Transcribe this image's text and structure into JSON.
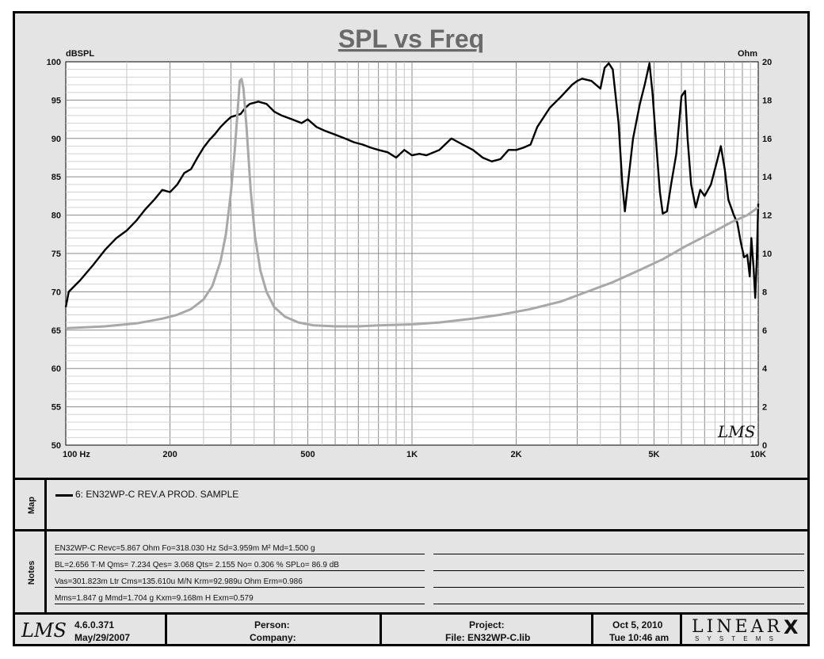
{
  "chart_data": {
    "type": "line",
    "title": "SPL vs Freq",
    "left_axis_label": "dBSPL",
    "right_axis_label": "Ohm",
    "x_scale": "log",
    "xlim": [
      100,
      10000
    ],
    "ylim_left": [
      50,
      100
    ],
    "ylim_right": [
      0,
      20
    ],
    "x_tick_labels": [
      {
        "value": 100,
        "label": "100  Hz"
      },
      {
        "value": 200,
        "label": "200"
      },
      {
        "value": 500,
        "label": "500"
      },
      {
        "value": 1000,
        "label": "1K"
      },
      {
        "value": 2000,
        "label": "2K"
      },
      {
        "value": 5000,
        "label": "5K"
      },
      {
        "value": 10000,
        "label": "10K"
      }
    ],
    "y_left_ticks": [
      50,
      55,
      60,
      65,
      70,
      75,
      80,
      85,
      90,
      95,
      100
    ],
    "y_right_ticks": [
      0,
      2,
      4,
      6,
      8,
      10,
      12,
      14,
      16,
      18,
      20
    ],
    "grid": true,
    "series": [
      {
        "name": "6: EN32WP-C REV.A PROD. SAMPLE",
        "axis": "left",
        "color": "#000000",
        "points": [
          [
            100,
            68.0
          ],
          [
            102,
            70.0
          ],
          [
            110,
            71.5
          ],
          [
            120,
            73.5
          ],
          [
            130,
            75.5
          ],
          [
            140,
            77.0
          ],
          [
            150,
            78.0
          ],
          [
            160,
            79.3
          ],
          [
            170,
            80.8
          ],
          [
            180,
            82.0
          ],
          [
            190,
            83.3
          ],
          [
            200,
            83.0
          ],
          [
            210,
            84.0
          ],
          [
            220,
            85.5
          ],
          [
            230,
            86.0
          ],
          [
            240,
            87.5
          ],
          [
            250,
            88.8
          ],
          [
            260,
            89.8
          ],
          [
            270,
            90.6
          ],
          [
            280,
            91.5
          ],
          [
            290,
            92.2
          ],
          [
            300,
            92.8
          ],
          [
            310,
            93.0
          ],
          [
            320,
            93.2
          ],
          [
            330,
            94.0
          ],
          [
            340,
            94.5
          ],
          [
            360,
            94.8
          ],
          [
            380,
            94.5
          ],
          [
            400,
            93.5
          ],
          [
            420,
            93.0
          ],
          [
            450,
            92.5
          ],
          [
            480,
            92.0
          ],
          [
            500,
            92.5
          ],
          [
            530,
            91.5
          ],
          [
            560,
            91.0
          ],
          [
            600,
            90.5
          ],
          [
            640,
            90.0
          ],
          [
            680,
            89.5
          ],
          [
            720,
            89.2
          ],
          [
            760,
            88.8
          ],
          [
            800,
            88.5
          ],
          [
            850,
            88.2
          ],
          [
            900,
            87.5
          ],
          [
            950,
            88.5
          ],
          [
            1000,
            87.8
          ],
          [
            1050,
            88.0
          ],
          [
            1100,
            87.8
          ],
          [
            1200,
            88.5
          ],
          [
            1300,
            90.0
          ],
          [
            1400,
            89.2
          ],
          [
            1500,
            88.5
          ],
          [
            1600,
            87.5
          ],
          [
            1700,
            87.0
          ],
          [
            1800,
            87.3
          ],
          [
            1900,
            88.5
          ],
          [
            2000,
            88.5
          ],
          [
            2100,
            88.8
          ],
          [
            2200,
            89.2
          ],
          [
            2300,
            91.5
          ],
          [
            2500,
            94.0
          ],
          [
            2700,
            95.5
          ],
          [
            2900,
            97.0
          ],
          [
            3000,
            97.5
          ],
          [
            3100,
            97.8
          ],
          [
            3300,
            97.5
          ],
          [
            3500,
            96.5
          ],
          [
            3600,
            99.2
          ],
          [
            3700,
            99.8
          ],
          [
            3800,
            99.0
          ],
          [
            3950,
            92.0
          ],
          [
            4050,
            84.0
          ],
          [
            4120,
            80.5
          ],
          [
            4200,
            84.0
          ],
          [
            4350,
            90.0
          ],
          [
            4550,
            94.5
          ],
          [
            4700,
            97.0
          ],
          [
            4850,
            99.8
          ],
          [
            4950,
            96.0
          ],
          [
            5100,
            88.0
          ],
          [
            5200,
            83.0
          ],
          [
            5300,
            80.2
          ],
          [
            5450,
            80.5
          ],
          [
            5600,
            84.0
          ],
          [
            5800,
            88.0
          ],
          [
            6000,
            95.5
          ],
          [
            6150,
            96.2
          ],
          [
            6250,
            90.0
          ],
          [
            6400,
            84.0
          ],
          [
            6600,
            81.0
          ],
          [
            6800,
            83.3
          ],
          [
            7000,
            82.5
          ],
          [
            7300,
            84.0
          ],
          [
            7600,
            87.0
          ],
          [
            7800,
            89.0
          ],
          [
            8000,
            86.0
          ],
          [
            8200,
            82.0
          ],
          [
            8500,
            80.0
          ],
          [
            8700,
            79.0
          ],
          [
            8900,
            76.5
          ],
          [
            9100,
            74.5
          ],
          [
            9300,
            74.8
          ],
          [
            9450,
            72.0
          ],
          [
            9550,
            77.0
          ],
          [
            9700,
            73.0
          ],
          [
            9800,
            69.2
          ],
          [
            9900,
            74.0
          ],
          [
            10000,
            81.5
          ]
        ]
      },
      {
        "name": "Impedance",
        "axis": "right",
        "color": "#a8a8a8",
        "points": [
          [
            100,
            6.1
          ],
          [
            130,
            6.2
          ],
          [
            160,
            6.35
          ],
          [
            190,
            6.6
          ],
          [
            210,
            6.8
          ],
          [
            230,
            7.1
          ],
          [
            250,
            7.6
          ],
          [
            265,
            8.3
          ],
          [
            280,
            9.6
          ],
          [
            290,
            11.0
          ],
          [
            300,
            13.2
          ],
          [
            308,
            15.5
          ],
          [
            314,
            17.6
          ],
          [
            318,
            19.0
          ],
          [
            322,
            19.1
          ],
          [
            326,
            18.6
          ],
          [
            333,
            16.5
          ],
          [
            342,
            13.3
          ],
          [
            352,
            10.9
          ],
          [
            365,
            9.1
          ],
          [
            380,
            8.0
          ],
          [
            400,
            7.2
          ],
          [
            430,
            6.7
          ],
          [
            470,
            6.4
          ],
          [
            520,
            6.25
          ],
          [
            600,
            6.2
          ],
          [
            700,
            6.2
          ],
          [
            800,
            6.25
          ],
          [
            1000,
            6.3
          ],
          [
            1200,
            6.4
          ],
          [
            1500,
            6.6
          ],
          [
            1800,
            6.8
          ],
          [
            2200,
            7.1
          ],
          [
            2700,
            7.5
          ],
          [
            3200,
            8.0
          ],
          [
            3800,
            8.5
          ],
          [
            4500,
            9.1
          ],
          [
            5300,
            9.7
          ],
          [
            6200,
            10.4
          ],
          [
            7200,
            11.0
          ],
          [
            8300,
            11.6
          ],
          [
            9300,
            12.0
          ],
          [
            10000,
            12.4
          ]
        ]
      }
    ]
  },
  "watermark": "LMS",
  "map": {
    "label": "Map",
    "legend_text": "6: EN32WP-C REV.A PROD. SAMPLE"
  },
  "notes": {
    "label": "Notes",
    "lines": [
      "EN32WP-C Revc=5.867 Ohm  Fo=318.030 Hz  Sd=3.959m M² Md=1.500 g",
      "BL=2.656 T·M  Qms= 7.234  Qes= 3.068  Qts= 2.155  No= 0.306 %  SPLo= 86.9 dB",
      "Vas=301.823m Ltr  Cms=135.610u M/N  Krm=92.989u Ohm  Erm=0.986",
      "Mms=1.847 g  Mmd=1.704 g  Kxm=9.168m H  Exm=0.579"
    ]
  },
  "footer": {
    "logo": "LMS",
    "version": "4.6.0.371",
    "version_date": "May/29/2007",
    "person_label": "Person:",
    "company_label": "Company:",
    "project_label": "Project:",
    "file_label": "File: EN32WP-C.lib",
    "date": "Oct  5, 2010",
    "time": "Tue 10:46 am",
    "brand_top": "LINEAR",
    "brand_x": "X",
    "brand_bottom": "S Y S T E M S"
  }
}
